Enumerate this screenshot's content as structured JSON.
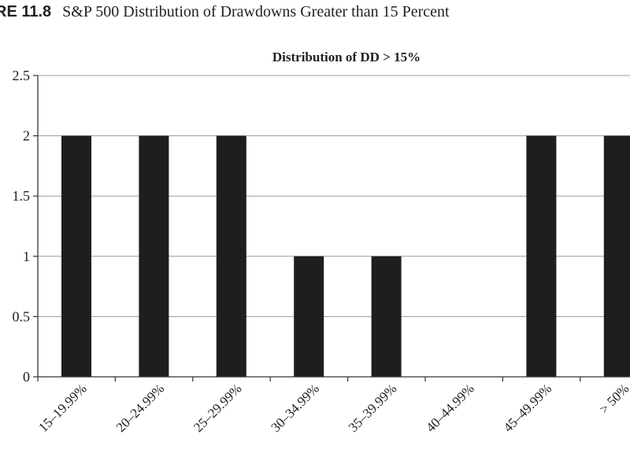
{
  "figure": {
    "label": "RE 11.8",
    "caption": "S&P 500 Distribution of Drawdowns Greater than 15 Percent"
  },
  "chart_data": {
    "type": "bar",
    "title": "Distribution of DD > 15%",
    "xlabel": "",
    "ylabel": "",
    "categories": [
      "15–19.99%",
      "20–24.99%",
      "25–29.99%",
      "30–34.99%",
      "35–39.99%",
      "40–44.99%",
      "45–49.99%",
      "> 50%"
    ],
    "values": [
      2,
      2,
      2,
      1,
      1,
      0,
      2,
      2
    ],
    "ylim": [
      0,
      2.5
    ],
    "yticks": [
      "0",
      "0.5",
      "1",
      "1.5",
      "2",
      "2.5"
    ],
    "grid": true,
    "legend": "none",
    "colors": {
      "bar": "#1e1e1e",
      "grid": "#9a9a9a",
      "axis": "#333333"
    }
  }
}
